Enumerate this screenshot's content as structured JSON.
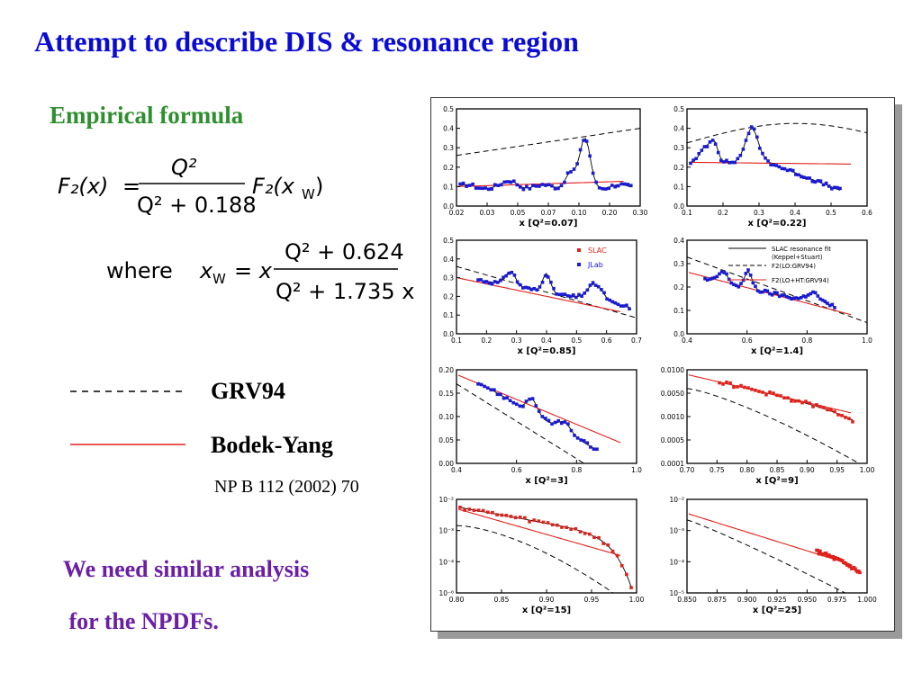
{
  "slide": {
    "title": "Attempt to describe DIS & resonance region",
    "subtitle": "Empirical formula",
    "formula1": {
      "lhs": "F₂(x)",
      "eq": "=",
      "num": "Q²",
      "den": "Q² + 0.188",
      "rhs": "F₂(x",
      "rhs_sub": "W",
      "rhs_close": ")"
    },
    "formula2": {
      "where": "where",
      "lhs": "x",
      "lhs_sub": "W",
      "eq": "= x",
      "num": "Q² + 0.624",
      "den": "Q² + 1.735 x"
    },
    "legend": [
      {
        "label": "GRV94",
        "style": "dashed",
        "color": "#000000"
      },
      {
        "label": "Bodek-Yang",
        "style": "solid",
        "color": "#e0201a"
      }
    ],
    "reference": "NP B 112 (2002) 70",
    "note_line1": "We need similar analysis",
    "note_line2": " for the NPDFs.",
    "colors": {
      "title": "#0b0bd6",
      "subtitle": "#2f8f2f",
      "note": "#6a1fa6",
      "data_blue": "#1a1ad0",
      "data_red": "#e0201a",
      "fit_red": "#e0201a"
    }
  },
  "figure": {
    "inner_legend_a": [
      "SLAC",
      "JLab"
    ],
    "inner_legend_b": [
      "SLAC resonance fit",
      "(Keppel+Stuart)",
      "F2(LO:GRV94)",
      "F2(LO+HT:GRV94)"
    ],
    "panels": [
      {
        "xlabel": "x [Q²=0.07]",
        "xticks": [
          "0.02",
          "0.03",
          "0.05",
          "0.07",
          "0.10",
          "0.20",
          "0.30"
        ],
        "yticks": [
          "0.0",
          "0.1",
          "0.2",
          "0.3",
          "0.4",
          "0.5"
        ]
      },
      {
        "xlabel": "x [Q²=0.22]",
        "xticks": [
          "0.1",
          "0.2",
          "0.3",
          "0.4",
          "0.5",
          "0.6"
        ],
        "yticks": [
          "0.0",
          "0.1",
          "0.2",
          "0.3",
          "0.4",
          "0.5"
        ]
      },
      {
        "xlabel": "x [Q²=0.85]",
        "xticks": [
          "0.1",
          "0.2",
          "0.3",
          "0.4",
          "0.5",
          "0.6",
          "0.7"
        ],
        "yticks": [
          "0.0",
          "0.1",
          "0.2",
          "0.3",
          "0.4",
          "0.5"
        ]
      },
      {
        "xlabel": "x [Q²=1.4]",
        "xticks": [
          "0.4",
          "0.6",
          "0.8",
          "1.0"
        ],
        "yticks": [
          "0.0",
          "0.1",
          "0.2",
          "0.3",
          "0.4"
        ]
      },
      {
        "xlabel": "x [Q²=3]",
        "xticks": [
          "0.4",
          "0.6",
          "0.8",
          "1.0"
        ],
        "yticks": [
          "0.00",
          "0.05",
          "0.10",
          "0.15",
          "0.20"
        ]
      },
      {
        "xlabel": "x [Q²=9]",
        "xticks": [
          "0.70",
          "0.75",
          "0.80",
          "0.85",
          "0.90",
          "0.95",
          "1.00"
        ],
        "yticks": [
          "0.0001",
          "0.0005",
          "0.0010",
          "0.0050",
          "0.0100"
        ]
      },
      {
        "xlabel": "x [Q²=15]",
        "xticks": [
          "0.80",
          "0.85",
          "0.90",
          "0.95",
          "1.00"
        ],
        "yticks": [
          "10⁻⁶",
          "10⁻⁴",
          "10⁻³",
          "10⁻²"
        ]
      },
      {
        "xlabel": "x [Q²=25]",
        "xticks": [
          "0.850",
          "0.875",
          "0.900",
          "0.925",
          "0.950",
          "0.975",
          "1.000"
        ],
        "yticks": [
          "10⁻⁵",
          "10⁻⁴",
          "10⁻³",
          "10⁻²"
        ]
      }
    ]
  }
}
